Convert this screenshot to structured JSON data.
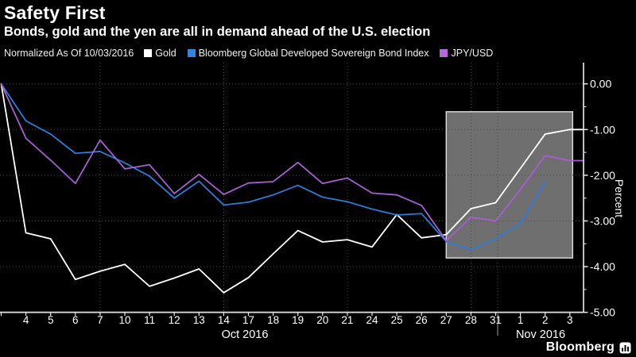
{
  "header": {
    "title": "Safety First",
    "subtitle": "Bonds, gold and the yen are all in demand ahead of the U.S. election"
  },
  "legend": {
    "note": "Normalized As Of 10/03/2016",
    "items": [
      {
        "label": "Gold",
        "color": "#ffffff"
      },
      {
        "label": "Bloomberg Global Developed Sovereign Bond Index",
        "color": "#2e86e0"
      },
      {
        "label": "JPY/USD",
        "color": "#b469db"
      }
    ]
  },
  "chart_data": {
    "type": "line",
    "title": "Safety First",
    "xlabel": "",
    "ylabel": "Percent",
    "ylim": [
      -5,
      0
    ],
    "grid": "dotted",
    "legend_position": "top",
    "yticks": {
      "values": [
        0,
        -1,
        -2,
        -3,
        -4,
        -5
      ],
      "labels": [
        "0.00",
        "-1.00",
        "-2.00",
        "-3.00",
        "-4.00",
        "-5.00"
      ],
      "minor_interval": 0.5
    },
    "x_dates": [
      "10/03",
      "10/04",
      "10/05",
      "10/06",
      "10/07",
      "10/10",
      "10/11",
      "10/12",
      "10/13",
      "10/14",
      "10/17",
      "10/18",
      "10/19",
      "10/20",
      "10/21",
      "10/24",
      "10/25",
      "10/26",
      "10/27",
      "10/28",
      "10/31",
      "11/01",
      "11/02",
      "11/03"
    ],
    "x_tick_labels": [
      "",
      "4",
      "5",
      "6",
      "7",
      "10",
      "11",
      "12",
      "13",
      "14",
      "17",
      "18",
      "19",
      "20",
      "21",
      "24",
      "25",
      "26",
      "27",
      "28",
      "31",
      "1",
      "2",
      "3"
    ],
    "month_labels": [
      {
        "label": "Oct 2016"
      },
      {
        "label": "Nov 2016"
      }
    ],
    "weekly_gridline_dates": [
      "10/07",
      "10/14",
      "10/21",
      "10/28"
    ],
    "month_separator_after": "10/31",
    "series": [
      {
        "id": "gold",
        "name": "Gold",
        "color": "#ffffff",
        "extend_to_axis": true,
        "values": [
          0,
          -3.26,
          -3.39,
          -4.28,
          -4.1,
          -3.95,
          -4.43,
          -4.25,
          -4.05,
          -4.57,
          -4.24,
          -3.72,
          -3.21,
          -3.46,
          -3.41,
          -3.57,
          -2.86,
          -3.37,
          -3.3,
          -2.73,
          -2.6,
          -1.85,
          -1.1,
          -1.0
        ]
      },
      {
        "id": "bond-index",
        "name": "Bloomberg Global Developed Sovereign Bond Index",
        "color": "#2b7cd8",
        "extend_to_axis": false,
        "values": [
          0,
          -0.81,
          -1.1,
          -1.52,
          -1.48,
          -1.73,
          -2.02,
          -2.5,
          -2.13,
          -2.65,
          -2.59,
          -2.43,
          -2.22,
          -2.48,
          -2.58,
          -2.74,
          -2.87,
          -2.84,
          -3.45,
          -3.63,
          -3.38,
          -3.05,
          -2.12,
          null
        ]
      },
      {
        "id": "jpy-usd",
        "name": "JPY/USD",
        "color": "#a55fd3",
        "extend_to_axis": true,
        "values": [
          0,
          -1.19,
          -1.67,
          -2.18,
          -1.23,
          -1.86,
          -1.77,
          -2.4,
          -1.98,
          -2.42,
          -2.17,
          -2.14,
          -1.72,
          -2.18,
          -2.06,
          -2.39,
          -2.43,
          -2.66,
          -3.43,
          -2.92,
          -3.0,
          -2.31,
          -1.57,
          -1.68
        ]
      }
    ],
    "highlight_region": {
      "x_start": "10/27",
      "x_end": "11/03",
      "y_top": -0.61,
      "y_bottom": -3.81,
      "fill": "#6f6f6f",
      "border": "#d5d5d5"
    }
  },
  "footer": {
    "brand": "Bloomberg"
  }
}
